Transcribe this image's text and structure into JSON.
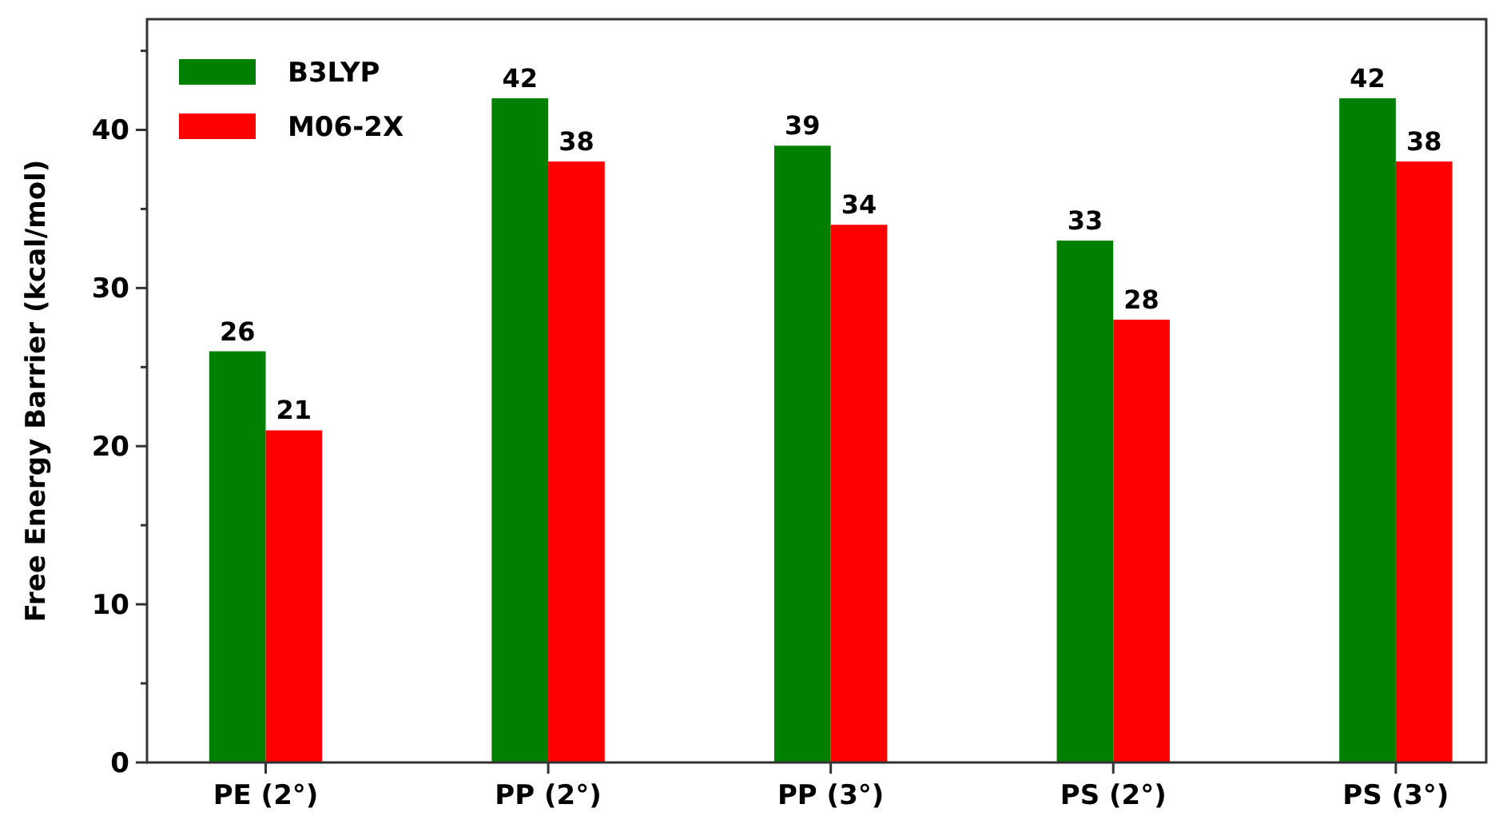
{
  "chart_data": {
    "type": "bar",
    "ylabel": "Free Energy Barrier (kcal/mol)",
    "categories": [
      "PE (2°)",
      "PP (2°)",
      "PP (3°)",
      "PS (2°)",
      "PS (3°)"
    ],
    "series": [
      {
        "name": "B3LYP",
        "color": "#008000",
        "values": [
          26,
          42,
          39,
          33,
          42
        ]
      },
      {
        "name": "M06-2X",
        "color": "#ff0000",
        "values": [
          21,
          38,
          34,
          28,
          38
        ]
      }
    ],
    "ylim": [
      0,
      47
    ],
    "yticks": [
      0,
      {
        "value": 5,
        "label": null
      },
      10,
      {
        "value": 15,
        "label": null
      },
      20,
      {
        "value": 25,
        "label": null
      },
      30,
      {
        "value": 35,
        "label": null
      },
      40,
      {
        "value": 45,
        "label": null
      }
    ],
    "data_labels": true,
    "legend": "top left",
    "grid": false
  }
}
